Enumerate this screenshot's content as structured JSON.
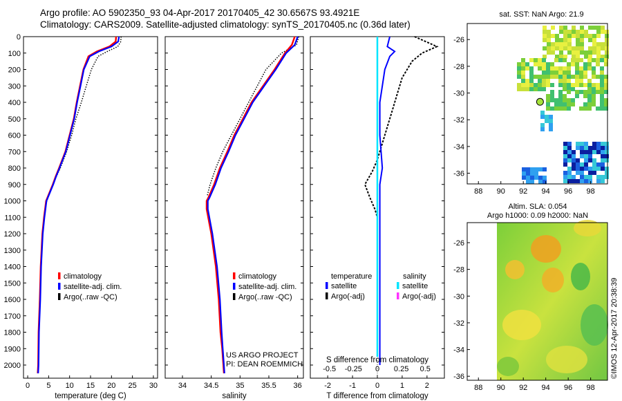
{
  "header": {
    "line1": "Argo profile: AO 5902350_93 04-Apr-2017 20170405_42 30.6567S 93.4921E",
    "line2": "Climatology: CARS2009. Satellite-adjusted climatology: synTS_20170405.nc (0.36d later)"
  },
  "colors": {
    "climatology": "#ff0000",
    "satellite": "#0000ff",
    "argo": "#000000",
    "satellite_salinity": "#00e5ff",
    "argo_salinity": "#ff33ff"
  },
  "chart_data": [
    {
      "id": "temperature",
      "type": "line",
      "xlabel": "temperature (deg C)",
      "xlim": [
        -1,
        31
      ],
      "xticks": [
        0,
        5,
        10,
        15,
        20,
        25,
        30
      ],
      "ylim": [
        0,
        2080
      ],
      "yticks": [
        0,
        100,
        200,
        300,
        400,
        500,
        600,
        700,
        800,
        900,
        1000,
        1100,
        1200,
        1300,
        1400,
        1500,
        1600,
        1700,
        1800,
        1900,
        2000
      ],
      "legend": [
        "climatology",
        "satellite-adj. clim.",
        "Argo(..raw -QC)"
      ],
      "series": [
        {
          "name": "climatology",
          "x": [
            21.1,
            21.0,
            19.5,
            16.5,
            14.5,
            13.3,
            12.5,
            11.7,
            11.0,
            10.0,
            9.0,
            7.5,
            6.7,
            6.0,
            5.2,
            4.4,
            3.9,
            3.5,
            3.1,
            2.9,
            2.6,
            2.5,
            2.4
          ],
          "y": [
            0,
            30,
            60,
            90,
            120,
            200,
            300,
            400,
            500,
            600,
            700,
            800,
            850,
            900,
            950,
            1000,
            1100,
            1200,
            1400,
            1600,
            1800,
            2000,
            2050
          ]
        },
        {
          "name": "satellite-adj. clim.",
          "x": [
            21.8,
            21.6,
            20.0,
            17.0,
            14.8,
            13.4,
            12.6,
            11.8,
            11.1,
            10.1,
            9.1,
            7.6,
            6.8,
            6.1,
            5.3,
            4.5,
            4.0,
            3.6,
            3.2,
            3.0,
            2.7,
            2.6,
            2.5
          ],
          "y": [
            0,
            30,
            60,
            90,
            120,
            200,
            300,
            400,
            500,
            600,
            700,
            800,
            850,
            900,
            950,
            1000,
            1100,
            1200,
            1400,
            1600,
            1800,
            2000,
            2050
          ]
        },
        {
          "name": "Argo(..raw -QC)",
          "x": [
            22.3,
            22.2,
            21.5,
            19.0,
            16.8,
            15.2,
            14.0,
            12.8,
            11.5,
            10.5,
            9.3,
            7.8,
            6.5,
            5.8,
            5.0,
            4.3,
            3.9,
            3.5,
            3.1,
            2.9,
            2.6
          ],
          "y": [
            0,
            30,
            60,
            90,
            120,
            200,
            300,
            400,
            500,
            600,
            700,
            800,
            870,
            920,
            970,
            1020,
            1100,
            1200,
            1400,
            1600,
            1800
          ]
        }
      ]
    },
    {
      "id": "salinity",
      "type": "line",
      "xlabel": "salinity",
      "xlim": [
        33.7,
        36.1
      ],
      "xticks": [
        34,
        34.5,
        35,
        35.5,
        36
      ],
      "xticklabels": [
        "34",
        "34.5",
        "35",
        "35.5",
        "36"
      ],
      "ylim": [
        0,
        2080
      ],
      "legend": [
        "climatology",
        "satellite-adj. clim.",
        "Argo(..raw -QC)"
      ],
      "annotation": [
        "US ARGO PROJECT",
        "PI: DEAN ROEMMICH"
      ],
      "series": [
        {
          "name": "climatology",
          "x": [
            35.95,
            35.9,
            35.78,
            35.6,
            35.4,
            35.2,
            35.05,
            34.9,
            34.78,
            34.65,
            34.55,
            34.45,
            34.42,
            34.42,
            34.5,
            34.58,
            34.63,
            34.66,
            34.69,
            34.71,
            34.72
          ],
          "y": [
            0,
            50,
            100,
            200,
            300,
            400,
            500,
            600,
            700,
            800,
            900,
            980,
            1000,
            1050,
            1200,
            1400,
            1600,
            1800,
            1900,
            2000,
            2050
          ]
        },
        {
          "name": "satellite-adj. clim.",
          "x": [
            36.0,
            35.95,
            35.8,
            35.62,
            35.42,
            35.22,
            35.07,
            34.92,
            34.8,
            34.67,
            34.57,
            34.47,
            34.44,
            34.44,
            34.52,
            34.6,
            34.65,
            34.68,
            34.7,
            34.72,
            34.73
          ],
          "y": [
            0,
            50,
            100,
            200,
            300,
            400,
            500,
            600,
            700,
            800,
            900,
            980,
            1000,
            1050,
            1200,
            1400,
            1600,
            1800,
            1900,
            2000,
            2050
          ]
        },
        {
          "name": "Argo(..raw -QC)",
          "x": [
            36.02,
            35.98,
            35.72,
            35.45,
            35.3,
            35.15,
            35.0,
            34.85,
            34.7,
            34.58,
            34.48,
            34.43
          ],
          "y": [
            0,
            50,
            100,
            200,
            300,
            400,
            500,
            600,
            700,
            800,
            900,
            970
          ]
        }
      ]
    },
    {
      "id": "difference",
      "type": "line",
      "xlabel": "T difference from climatology",
      "xlabel_top": "S difference from climatology",
      "xlim": [
        -2.7,
        2.7
      ],
      "xticks": [
        -2,
        -1,
        0,
        1,
        2
      ],
      "xticklabels": [
        "-2",
        "-1",
        "0",
        "1",
        "2"
      ],
      "xticks_top": [
        -0.5,
        -0.25,
        0,
        0.25,
        0.5
      ],
      "xticklabels_top": [
        "-0.5",
        "-0.25",
        "0",
        "0.25",
        "0.5"
      ],
      "ylim": [
        0,
        2080
      ],
      "legend_left": {
        "title": "temperature",
        "items": [
          "satellite",
          "Argo(-adj)"
        ]
      },
      "legend_right": {
        "title": "salinity",
        "items": [
          "satellite",
          "Argo(-adj)"
        ]
      },
      "series": [
        {
          "name": "temperature satellite",
          "x": [
            0.5,
            0.4,
            0.7,
            0.5,
            0.3,
            0.2,
            0.1,
            0.1,
            0.1,
            0.15,
            0.2,
            0.1,
            0.1,
            0.1,
            0.1,
            0.1
          ],
          "y": [
            0,
            60,
            90,
            120,
            200,
            300,
            400,
            500,
            600,
            700,
            800,
            900,
            1000,
            1200,
            1600,
            2000
          ]
        },
        {
          "name": "temperature Argo(-adj)",
          "x": [
            1.5,
            2.4,
            1.8,
            1.4,
            1.0,
            0.8,
            0.6,
            0.4,
            0.2,
            0.0,
            -0.2,
            -0.5,
            -0.3,
            -0.1,
            0.0
          ],
          "y": [
            0,
            60,
            100,
            150,
            250,
            350,
            450,
            550,
            650,
            750,
            820,
            900,
            980,
            1050,
            1100
          ]
        },
        {
          "name": "salinity satellite",
          "x": [
            0.0,
            0.0,
            0.0,
            0.0,
            0.0,
            0.0
          ],
          "y": [
            0,
            300,
            800,
            1200,
            1600,
            1950
          ]
        }
      ]
    },
    {
      "id": "sst-map",
      "type": "heatmap",
      "title": "sat. SST: NaN Argo: 21.9",
      "xlim": [
        87,
        99.5
      ],
      "xticks": [
        88,
        90,
        92,
        94,
        96,
        98
      ],
      "ylim": [
        -36.8,
        -24.8
      ],
      "yticks": [
        -26,
        -28,
        -30,
        -32,
        -34,
        -36
      ],
      "argo_position": [
        93.49,
        -30.66
      ]
    },
    {
      "id": "sla-map",
      "type": "heatmap",
      "title": "Altim. SLA: 0.054",
      "subtitle": "Argo h1000: 0.09 h2000: NaN",
      "xlim": [
        87,
        99.5
      ],
      "xticks": [
        88,
        90,
        92,
        94,
        96,
        98
      ],
      "ylim": [
        -36.3,
        -24.5
      ],
      "yticks": [
        -26,
        -28,
        -30,
        -32,
        -34,
        -36
      ]
    }
  ],
  "footer": {
    "stamp": "©IMOS 12-Apr-2017 20:38:39"
  }
}
